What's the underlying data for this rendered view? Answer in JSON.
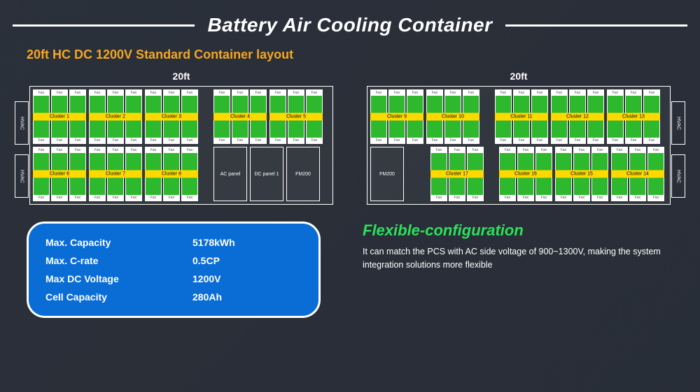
{
  "title": "Battery Air Cooling Container",
  "subtitle": "20ft HC DC 1200V Standard Container layout",
  "colors": {
    "accent_orange": "#f5a623",
    "cluster_green": "#2db82d",
    "cluster_label_bg": "#ffd800",
    "spec_box_bg": "#0a6dd6",
    "flex_title_green": "#2de05a",
    "border_white": "#ffffff"
  },
  "container_label": "20ft",
  "hvac_label": "HVAC",
  "left_container": {
    "top_row": [
      {
        "label": "Cluster 1"
      },
      {
        "label": "Cluster 2"
      },
      {
        "label": "Cluster 3"
      },
      {
        "label": "Cluster 4"
      },
      {
        "label": "Cluster 5"
      }
    ],
    "bottom_row": {
      "clusters": [
        {
          "label": "Cluster 6"
        },
        {
          "label": "Cluster 7"
        },
        {
          "label": "Cluster 8"
        }
      ],
      "panels": [
        "AC panel",
        "DC panel 1",
        "FM200"
      ]
    }
  },
  "right_container": {
    "top_row": [
      {
        "label": "Cluster 9"
      },
      {
        "label": "Cluster 10"
      },
      {
        "label": "Cluster 11"
      },
      {
        "label": "Cluster 12"
      },
      {
        "label": "Cluster 13"
      }
    ],
    "bottom_row": {
      "panels": [
        "FM200"
      ],
      "clusters": [
        {
          "label": "Cluster 17"
        },
        {
          "label": "Cluster 16"
        },
        {
          "label": "Cluster 15"
        },
        {
          "label": "Cluster 14"
        }
      ]
    }
  },
  "specs": [
    {
      "label": "Max. Capacity",
      "value": "5178kWh"
    },
    {
      "label": "Max. C-rate",
      "value": "0.5CP"
    },
    {
      "label": "Max DC Voltage",
      "value": "1200V"
    },
    {
      "label": "Cell Capacity",
      "value": "280Ah"
    }
  ],
  "flex": {
    "title": "Flexible-configuration",
    "text": "It can match the PCS with AC side voltage of 900~1300V, making the system integration solutions more flexible"
  }
}
